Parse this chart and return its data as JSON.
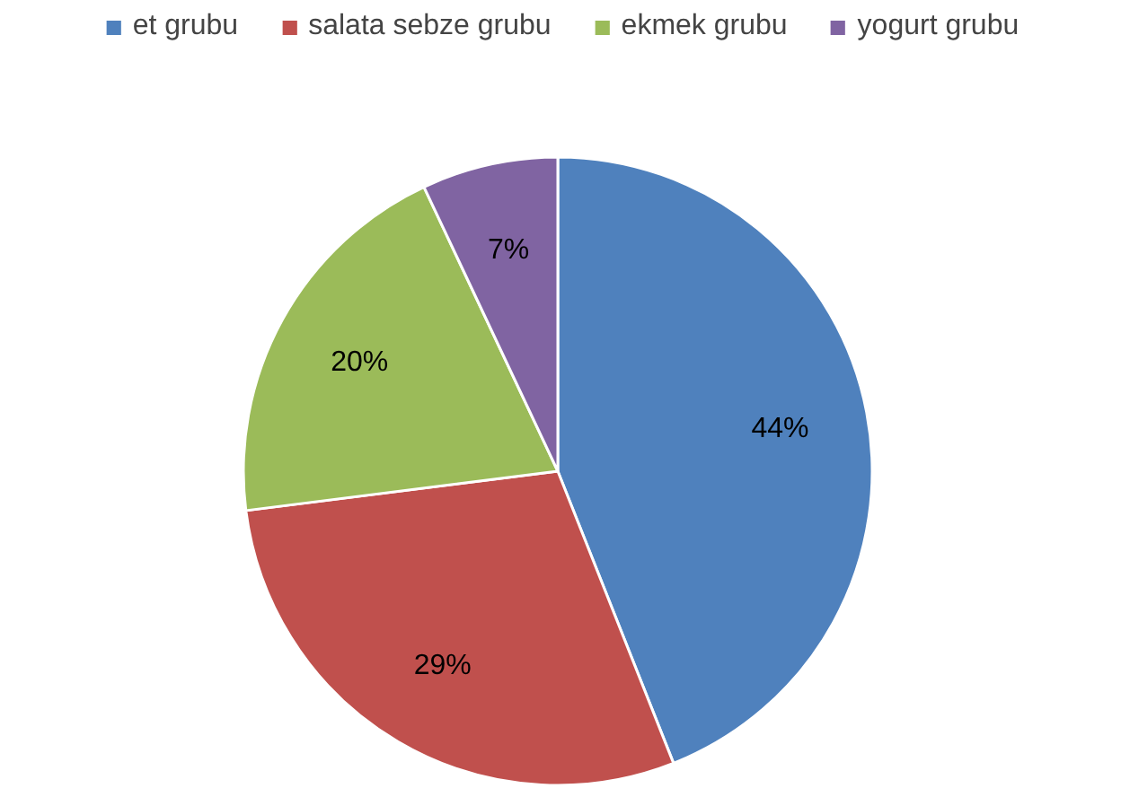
{
  "chart_data": {
    "type": "pie",
    "categories": [
      "et grubu",
      "salata sebze grubu",
      "ekmek grubu",
      "yogurt grubu"
    ],
    "values": [
      44,
      29,
      20,
      7
    ],
    "colors": [
      "#4f81bd",
      "#c0504d",
      "#9bbb59",
      "#8064a2"
    ],
    "value_labels": [
      "44%",
      "29%",
      "20%",
      "7%"
    ],
    "legend": "top"
  }
}
